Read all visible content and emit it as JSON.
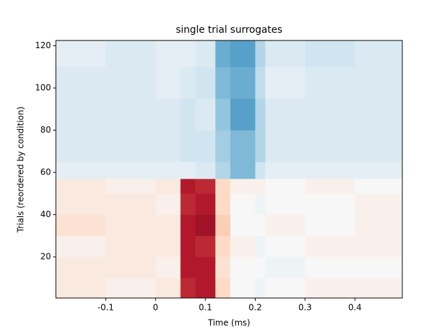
{
  "chart_data": {
    "type": "heatmap",
    "title": "single trial surrogates",
    "x_label": "Time (ms)",
    "y_label": "Trials (reordered by condition)",
    "x_edges": [
      -0.2,
      -0.1,
      0,
      0.05,
      0.08,
      0.12,
      0.15,
      0.2,
      0.22,
      0.3,
      0.4,
      0.495
    ],
    "y_edges": [
      0.5,
      10,
      20,
      30,
      40,
      50,
      57,
      65,
      80,
      95,
      110,
      122.5
    ],
    "z": [
      [
        0.1,
        0.05,
        0.1,
        0.75,
        0.8,
        0.2,
        0.0,
        -0.05,
        0.0,
        0.05,
        0.05
      ],
      [
        0.1,
        0.1,
        0.05,
        0.8,
        0.8,
        0.15,
        0.0,
        0.0,
        -0.05,
        0.0,
        0.0
      ],
      [
        0.05,
        0.1,
        0.1,
        0.8,
        0.75,
        0.2,
        0.05,
        -0.05,
        0.0,
        0.05,
        0.05
      ],
      [
        0.15,
        0.1,
        0.1,
        0.8,
        0.85,
        0.25,
        0.0,
        0.0,
        0.05,
        0.0,
        0.05
      ],
      [
        0.1,
        0.1,
        0.05,
        0.75,
        0.8,
        0.2,
        0.0,
        -0.05,
        0.0,
        0.0,
        0.05
      ],
      [
        0.1,
        0.05,
        0.1,
        0.8,
        0.75,
        0.2,
        0.05,
        0.05,
        0.0,
        0.05,
        0.0
      ],
      [
        -0.1,
        -0.1,
        -0.1,
        -0.1,
        -0.15,
        -0.3,
        -0.45,
        -0.2,
        -0.1,
        -0.1,
        -0.1
      ],
      [
        -0.15,
        -0.15,
        -0.15,
        -0.2,
        -0.2,
        -0.35,
        -0.45,
        -0.3,
        -0.15,
        -0.15,
        -0.15
      ],
      [
        -0.15,
        -0.15,
        -0.15,
        -0.2,
        -0.15,
        -0.4,
        -0.55,
        -0.3,
        -0.15,
        -0.15,
        -0.15
      ],
      [
        -0.15,
        -0.15,
        -0.1,
        -0.15,
        -0.2,
        -0.45,
        -0.5,
        -0.25,
        -0.1,
        -0.15,
        -0.15
      ],
      [
        -0.1,
        -0.15,
        -0.1,
        -0.1,
        -0.15,
        -0.5,
        -0.55,
        -0.3,
        -0.15,
        -0.2,
        -0.15
      ]
    ],
    "colormap": "RdBu_r",
    "zlim": [
      -1,
      1
    ],
    "xlim": [
      -0.2,
      0.495
    ],
    "ylim": [
      0.5,
      122.5
    ],
    "xticks": [
      -0.1,
      0.0,
      0.1,
      0.2,
      0.3,
      0.4
    ],
    "yticks": [
      20,
      40,
      60,
      80,
      100,
      120
    ]
  }
}
